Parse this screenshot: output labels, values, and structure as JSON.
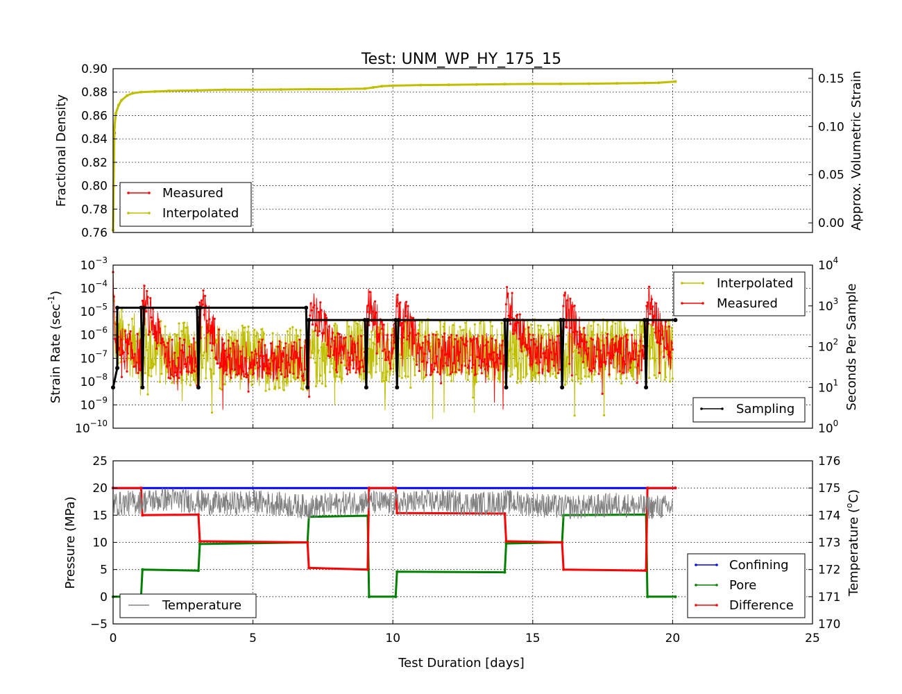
{
  "figure": {
    "title": "Test: UNM_WP_HY_175_15",
    "xlabel": "Test Duration [days]",
    "xlim": [
      0,
      25
    ],
    "xticks": [
      "0",
      "5",
      "10",
      "15",
      "20",
      "25"
    ]
  },
  "chart_data": [
    {
      "type": "line",
      "panel": "density",
      "ylabel": "Fractional Density",
      "y2label": "Approx. Volumetric Strain",
      "ylim": [
        0.76,
        0.9
      ],
      "yticks": [
        "0.76",
        "0.78",
        "0.80",
        "0.82",
        "0.84",
        "0.86",
        "0.88",
        "0.90"
      ],
      "y2lim": [
        -0.01,
        0.16
      ],
      "y2ticks": [
        "0.00",
        "0.05",
        "0.10",
        "0.15"
      ],
      "grid": true,
      "legend": {
        "position": "lower-left",
        "entries": [
          "Measured",
          "Interpolated"
        ]
      },
      "series": [
        {
          "name": "Measured",
          "color": "#ff0000",
          "x": [
            0.0,
            0.02,
            0.05
          ],
          "y": [
            0.762,
            0.8,
            0.845
          ]
        },
        {
          "name": "Interpolated",
          "color": "#bfbf00",
          "x": [
            0.0,
            0.02,
            0.05,
            0.1,
            0.2,
            0.3,
            0.5,
            0.7,
            1.0,
            1.5,
            2.0,
            3.0,
            4.0,
            5.0,
            6.0,
            7.0,
            8.0,
            9.0,
            9.3,
            9.6,
            10.0,
            11.0,
            12.0,
            13.0,
            14.0,
            15.0,
            16.0,
            17.0,
            18.0,
            19.0,
            19.5,
            20.1
          ],
          "y": [
            0.762,
            0.8,
            0.85,
            0.862,
            0.869,
            0.873,
            0.877,
            0.879,
            0.88,
            0.8805,
            0.881,
            0.8815,
            0.882,
            0.882,
            0.8822,
            0.8825,
            0.8825,
            0.883,
            0.884,
            0.885,
            0.8855,
            0.886,
            0.8862,
            0.8865,
            0.8868,
            0.887,
            0.887,
            0.8872,
            0.8875,
            0.8878,
            0.888,
            0.889
          ]
        }
      ]
    },
    {
      "type": "line",
      "panel": "strain_rate",
      "ylabel": "Strain Rate (sec",
      "ylabel_sup": "-1",
      "ylabel_end": ")",
      "y2label": "Seconds Per Sample",
      "y_scale": "log",
      "ylim": [
        1e-10,
        0.001
      ],
      "yticks": [
        "10^-10",
        "10^-9",
        "10^-8",
        "10^-7",
        "10^-6",
        "10^-5",
        "10^-4",
        "10^-3"
      ],
      "y2_scale": "log",
      "y2lim": [
        1,
        10000
      ],
      "y2ticks": [
        "10^0",
        "10^1",
        "10^2",
        "10^3",
        "10^4"
      ],
      "grid": true,
      "legends": [
        {
          "position": "upper-right",
          "entries": [
            "Interpolated",
            "Measured"
          ]
        },
        {
          "position": "lower-right",
          "entries": [
            "Sampling"
          ]
        }
      ],
      "series": [
        {
          "name": "Interpolated",
          "color": "#bfbf00",
          "band": "1e-8 to 1e-6 (noisy), occasional dips to ~1e-10",
          "x": [
            0.0,
            0.05,
            0.5,
            1.0,
            2.0,
            3.0,
            4.0,
            5.0,
            6.0,
            7.0,
            8.0,
            9.0,
            10.0,
            11.0,
            12.0,
            13.0,
            14.0,
            15.0,
            16.0,
            17.0,
            18.0,
            19.0,
            20.0
          ],
          "y": [
            0.0005,
            1e-06,
            4e-07,
            3e-07,
            1.5e-07,
            1.5e-07,
            1.2e-07,
            1e-07,
            1e-07,
            1e-07,
            2e-07,
            2e-07,
            2e-07,
            2e-07,
            2e-07,
            2e-07,
            2e-07,
            2e-07,
            2e-07,
            2e-07,
            2e-07,
            2e-07,
            2e-07
          ]
        },
        {
          "name": "Measured",
          "color": "#ff0000",
          "band": "3e-8 to 5e-7 (noisy), spikes ~3e-5 at pressure steps",
          "x": [
            0.0,
            0.05,
            0.5,
            1.0,
            1.05,
            2.0,
            3.0,
            3.1,
            4.0,
            5.0,
            6.0,
            7.0,
            7.05,
            8.0,
            9.0,
            9.1,
            10.0,
            10.15,
            11.0,
            12.0,
            13.0,
            14.0,
            14.05,
            15.0,
            16.0,
            16.1,
            17.0,
            18.0,
            19.0,
            19.1,
            20.0
          ],
          "y": [
            0.0005,
            5e-07,
            2e-07,
            1.5e-07,
            3e-05,
            1e-07,
            1e-07,
            2.5e-05,
            8e-08,
            8e-08,
            8e-08,
            8e-08,
            2.5e-05,
            1.5e-07,
            1.5e-07,
            2e-05,
            1.5e-07,
            2.5e-05,
            1.5e-07,
            1.5e-07,
            1.5e-07,
            1.5e-07,
            3e-05,
            1.5e-07,
            1.5e-07,
            2.5e-05,
            1.5e-07,
            1.5e-07,
            1.5e-07,
            2.5e-05,
            1.5e-07
          ]
        },
        {
          "name": "Sampling",
          "color": "#000000",
          "axis": "right",
          "x": [
            0.0,
            0.15,
            0.15,
            1.0,
            1.05,
            1.1,
            3.0,
            3.05,
            3.1,
            6.9,
            6.95,
            7.0,
            9.0,
            9.05,
            9.1,
            10.1,
            10.15,
            10.2,
            14.0,
            14.05,
            14.1,
            16.0,
            16.05,
            16.1,
            19.0,
            19.05,
            19.1,
            20.1
          ],
          "y": [
            10,
            30,
            900,
            900,
            10,
            900,
            900,
            10,
            900,
            900,
            10,
            450,
            450,
            10,
            450,
            450,
            10,
            450,
            450,
            10,
            450,
            450,
            10,
            450,
            450,
            10,
            450,
            450
          ]
        }
      ]
    },
    {
      "type": "line",
      "panel": "pressure",
      "ylabel": "Pressure (MPa)",
      "y2label": "Temperature (",
      "y2label_sup": "o",
      "y2label_end": "C)",
      "ylim": [
        -5,
        25
      ],
      "yticks": [
        "−5",
        "0",
        "5",
        "10",
        "15",
        "20",
        "25"
      ],
      "y2lim": [
        170,
        176
      ],
      "y2ticks": [
        "170",
        "171",
        "172",
        "173",
        "174",
        "175",
        "176"
      ],
      "grid": true,
      "legends": [
        {
          "position": "lower-left",
          "entries": [
            "Temperature"
          ]
        },
        {
          "position": "lower-right",
          "entries": [
            "Confining",
            "Pore",
            "Difference"
          ]
        }
      ],
      "series": [
        {
          "name": "Confining",
          "color": "#0000ff",
          "x": [
            0.0,
            20.1
          ],
          "y": [
            20,
            20
          ]
        },
        {
          "name": "Pore",
          "color": "#008000",
          "x": [
            0.0,
            1.0,
            1.05,
            3.05,
            3.1,
            6.95,
            7.0,
            9.1,
            9.15,
            10.1,
            10.15,
            14.0,
            14.05,
            16.05,
            16.1,
            19.05,
            19.1,
            20.1
          ],
          "y": [
            0,
            0,
            5,
            4.8,
            9.7,
            10,
            14.7,
            14.9,
            0,
            0,
            4.6,
            4.5,
            9.8,
            10,
            15,
            15.1,
            0,
            0
          ]
        },
        {
          "name": "Difference",
          "color": "#ff0000",
          "x": [
            0.0,
            1.0,
            1.05,
            3.05,
            3.1,
            6.95,
            7.0,
            9.1,
            9.15,
            10.1,
            10.15,
            14.0,
            14.05,
            16.05,
            16.1,
            19.05,
            19.1,
            20.1
          ],
          "y": [
            20,
            20,
            15,
            15.1,
            10.2,
            10,
            5.3,
            5,
            20,
            20,
            15.4,
            15.3,
            10.2,
            10,
            5,
            4.8,
            20,
            20
          ]
        },
        {
          "name": "Temperature",
          "color": "#808080",
          "axis": "right",
          "band": "173.5 to 175.2 °C, noisy",
          "x": [
            0.0,
            1.0,
            2.0,
            3.0,
            4.0,
            5.0,
            6.0,
            7.0,
            8.0,
            9.0,
            10.0,
            11.0,
            12.0,
            13.0,
            14.0,
            15.0,
            16.0,
            17.0,
            18.0,
            19.0,
            20.0
          ],
          "y": [
            174.4,
            174.5,
            174.6,
            174.5,
            174.4,
            174.5,
            174.4,
            174.3,
            174.4,
            174.5,
            174.4,
            174.5,
            174.5,
            174.4,
            174.5,
            174.4,
            174.3,
            174.3,
            174.4,
            174.3,
            174.3
          ]
        }
      ]
    }
  ]
}
